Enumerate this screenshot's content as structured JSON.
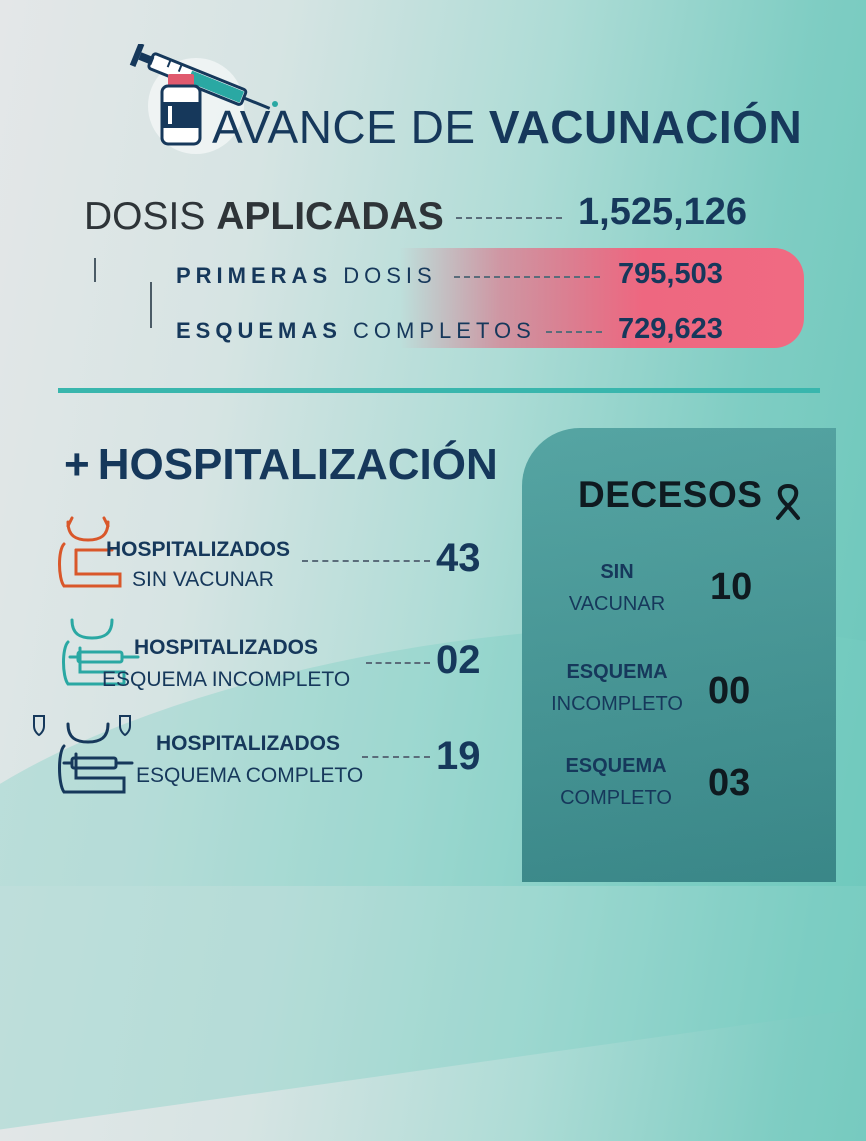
{
  "colors": {
    "navy": "#16385b",
    "accent_teal": "#39b6ad",
    "pink": "#f06a82",
    "panel": "#3d8f90",
    "orange_icon": "#d9572a",
    "teal_icon": "#2aa8a3"
  },
  "header": {
    "icon": "vaccine-syringe-vial-icon",
    "title_light": "AVANCE DE ",
    "title_bold": "VACUNACIÓN"
  },
  "dosis": {
    "label_light": "DOSIS ",
    "label_bold": "APLICADAS",
    "total": "1,525,126",
    "primeras": {
      "bold": "PRIMERAS",
      "light": " DOSIS",
      "value": "795,503"
    },
    "esquemas": {
      "bold": "ESQUEMAS",
      "light": " COMPLETOS",
      "value": "729,623"
    }
  },
  "hospitalizacion": {
    "title": "HOSPITALIZACIÓN",
    "plus": "+",
    "items": [
      {
        "label": "HOSPITALIZADOS",
        "sub": "SIN VACUNAR",
        "value": "43",
        "icon": "patient-unvaccinated-icon"
      },
      {
        "label": "HOSPITALIZADOS",
        "sub": "ESQUEMA INCOMPLETO",
        "value": "02",
        "icon": "patient-incomplete-icon"
      },
      {
        "label": "HOSPITALIZADOS",
        "sub": "ESQUEMA COMPLETO",
        "value": "19",
        "icon": "patient-complete-icon"
      }
    ]
  },
  "decesos": {
    "title": "DECESOS",
    "icon": "mourning-ribbon-icon",
    "items": [
      {
        "bold": "SIN",
        "light": "VACUNAR",
        "value": "10"
      },
      {
        "bold": "ESQUEMA",
        "light": "INCOMPLETO",
        "value": "00"
      },
      {
        "bold": "ESQUEMA",
        "light": "COMPLETO",
        "value": "03"
      }
    ]
  }
}
